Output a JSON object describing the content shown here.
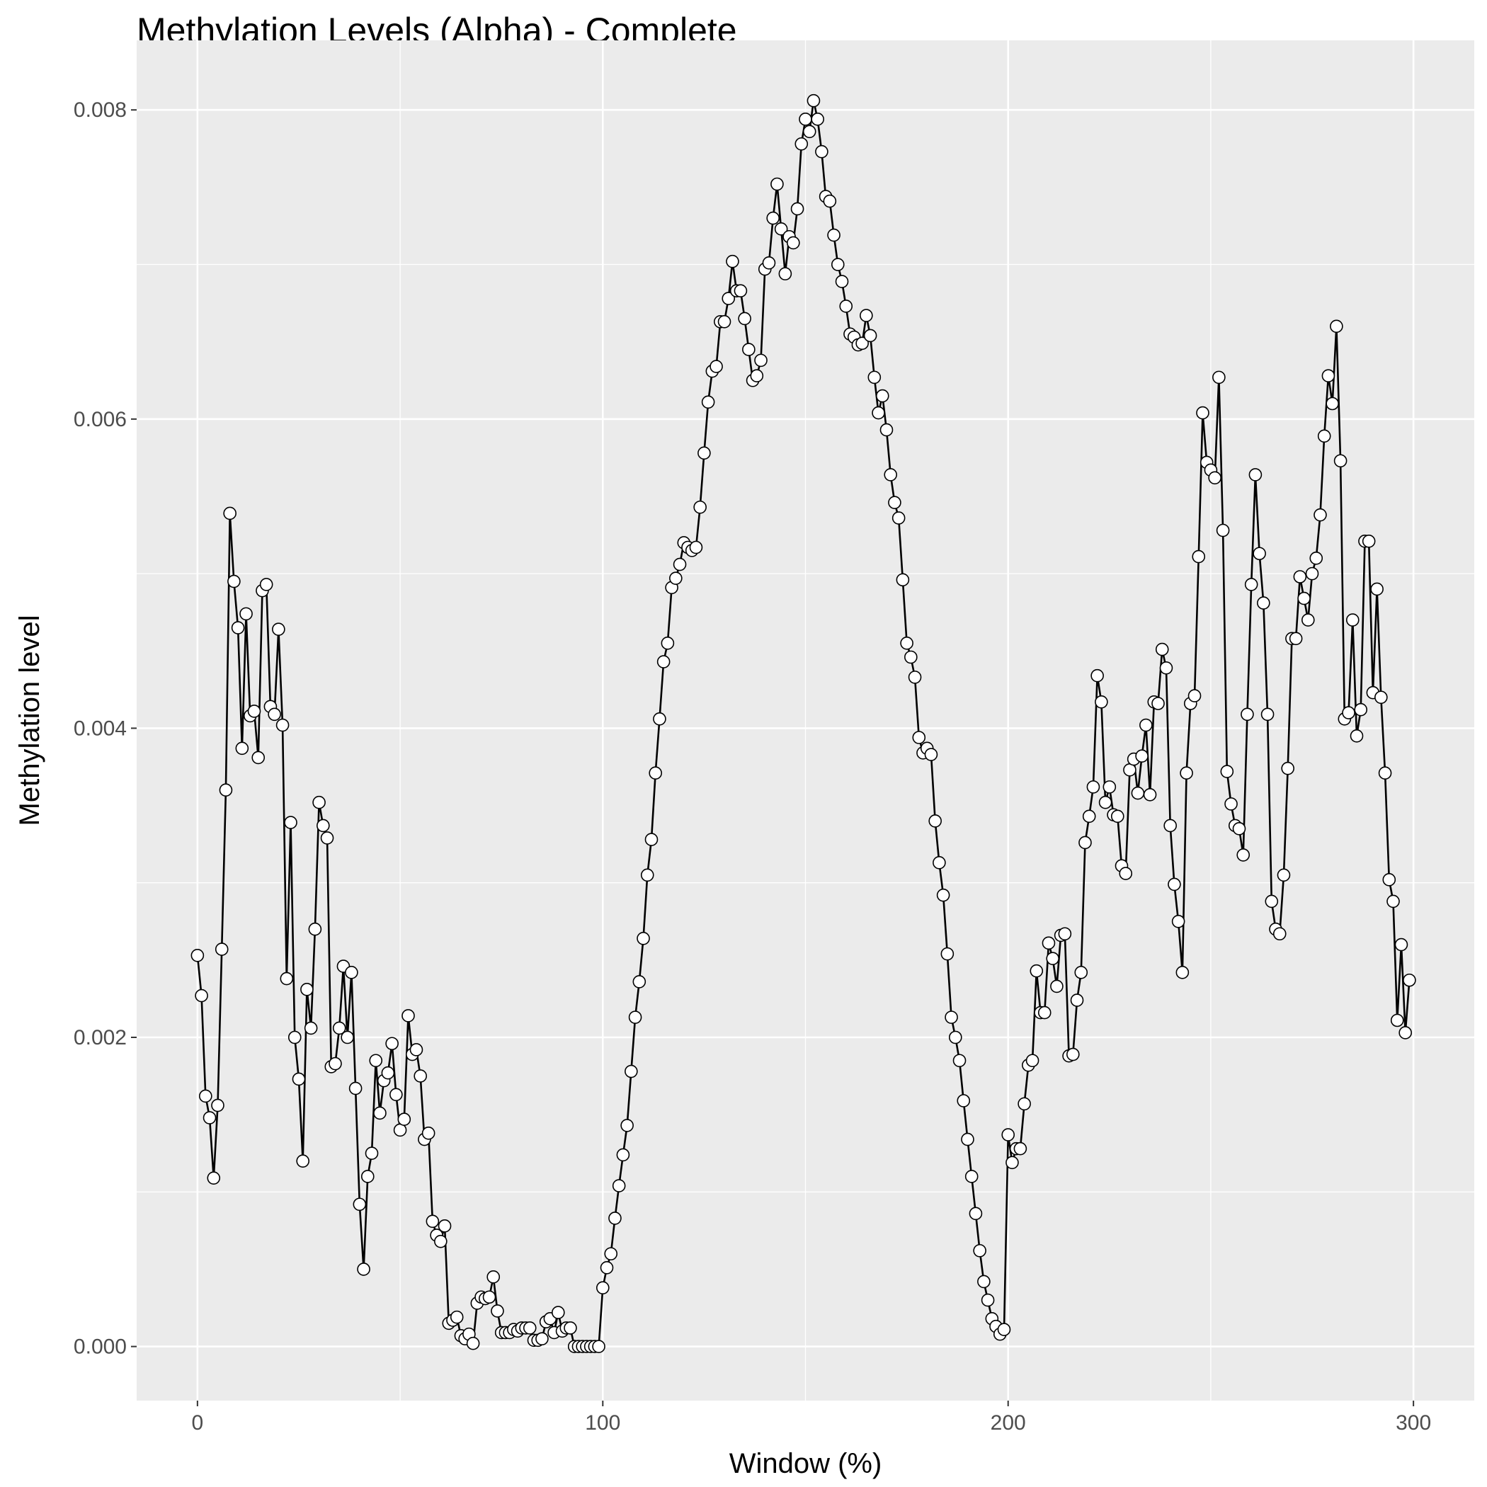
{
  "chart_data": {
    "type": "line",
    "title": "Methylation Levels (Alpha) - Complete",
    "xlabel": "Window (%)",
    "ylabel": "Methylation level",
    "xlim": [
      -15,
      315
    ],
    "ylim": [
      -0.00035,
      0.00845
    ],
    "x_ticks": [
      0,
      100,
      200,
      300
    ],
    "y_ticks": [
      0.0,
      0.002,
      0.004,
      0.006,
      0.008
    ],
    "x_tick_labels": [
      "0",
      "100",
      "200",
      "300"
    ],
    "y_tick_labels": [
      "0.000",
      "0.002",
      "0.004",
      "0.006",
      "0.008"
    ],
    "grid": true,
    "colors": {
      "panel": "#ebebeb",
      "grid": "#ffffff",
      "line": "#000000",
      "point_fill": "#ffffff",
      "point_stroke": "#000000"
    },
    "series": [
      {
        "x_start": 0,
        "x_step": 1,
        "values": [
          0.00253,
          0.00227,
          0.00162,
          0.00148,
          0.00109,
          0.00156,
          0.00257,
          0.0036,
          0.00539,
          0.00495,
          0.00465,
          0.00387,
          0.00474,
          0.00408,
          0.00411,
          0.00381,
          0.00489,
          0.00493,
          0.00414,
          0.00409,
          0.00464,
          0.00402,
          0.00238,
          0.00339,
          0.002,
          0.00173,
          0.0012,
          0.00231,
          0.00206,
          0.0027,
          0.00352,
          0.00337,
          0.00329,
          0.00181,
          0.00183,
          0.00206,
          0.00246,
          0.002,
          0.00242,
          0.00167,
          0.00092,
          0.0005,
          0.0011,
          0.00125,
          0.00185,
          0.00151,
          0.00172,
          0.00177,
          0.00196,
          0.00163,
          0.0014,
          0.00147,
          0.00214,
          0.00189,
          0.00192,
          0.00175,
          0.00134,
          0.00138,
          0.00081,
          0.00072,
          0.00068,
          0.00078,
          0.00015,
          0.00017,
          0.00019,
          7e-05,
          5e-05,
          8e-05,
          2e-05,
          0.00028,
          0.00032,
          0.00031,
          0.00032,
          0.00045,
          0.00023,
          9e-05,
          9e-05,
          9e-05,
          0.00011,
          0.0001,
          0.00012,
          0.00012,
          0.00012,
          4e-05,
          4e-05,
          5e-05,
          0.00016,
          0.00018,
          9e-05,
          0.00022,
          0.0001,
          0.00012,
          0.00012,
          0.0,
          0.0,
          0.0,
          0.0,
          0.0,
          0.0,
          0.0,
          0.00038,
          0.00051,
          0.0006,
          0.00083,
          0.00104,
          0.00124,
          0.00143,
          0.00178,
          0.00213,
          0.00236,
          0.00264,
          0.00305,
          0.00328,
          0.00371,
          0.00406,
          0.00443,
          0.00455,
          0.00491,
          0.00497,
          0.00506,
          0.0052,
          0.00517,
          0.00515,
          0.00517,
          0.00543,
          0.00578,
          0.00611,
          0.00631,
          0.00634,
          0.00663,
          0.00663,
          0.00678,
          0.00702,
          0.00683,
          0.00683,
          0.00665,
          0.00645,
          0.00625,
          0.00628,
          0.00638,
          0.00697,
          0.00701,
          0.0073,
          0.00752,
          0.00723,
          0.00694,
          0.00718,
          0.00714,
          0.00736,
          0.00778,
          0.00794,
          0.00786,
          0.00806,
          0.00794,
          0.00773,
          0.00744,
          0.00741,
          0.00719,
          0.007,
          0.00689,
          0.00673,
          0.00655,
          0.00653,
          0.00648,
          0.00649,
          0.00667,
          0.00654,
          0.00627,
          0.00604,
          0.00615,
          0.00593,
          0.00564,
          0.00546,
          0.00536,
          0.00496,
          0.00455,
          0.00446,
          0.00433,
          0.00394,
          0.00384,
          0.00387,
          0.00383,
          0.0034,
          0.00313,
          0.00292,
          0.00254,
          0.00213,
          0.002,
          0.00185,
          0.00159,
          0.00134,
          0.0011,
          0.00086,
          0.00062,
          0.00042,
          0.0003,
          0.00018,
          0.00013,
          8e-05,
          0.00011,
          0.00137,
          0.00119,
          0.00128,
          0.00128,
          0.00157,
          0.00182,
          0.00185,
          0.00243,
          0.00216,
          0.00216,
          0.00261,
          0.00251,
          0.00233,
          0.00266,
          0.00267,
          0.00188,
          0.00189,
          0.00224,
          0.00242,
          0.00326,
          0.00343,
          0.00362,
          0.00434,
          0.00417,
          0.00352,
          0.00362,
          0.00344,
          0.00343,
          0.00311,
          0.00306,
          0.00373,
          0.0038,
          0.00358,
          0.00382,
          0.00402,
          0.00357,
          0.00417,
          0.00416,
          0.00451,
          0.00439,
          0.00337,
          0.00299,
          0.00275,
          0.00242,
          0.00371,
          0.00416,
          0.00421,
          0.00511,
          0.00604,
          0.00572,
          0.00567,
          0.00562,
          0.00627,
          0.00528,
          0.00372,
          0.00351,
          0.00337,
          0.00335,
          0.00318,
          0.00409,
          0.00493,
          0.00564,
          0.00513,
          0.00481,
          0.00409,
          0.00288,
          0.0027,
          0.00267,
          0.00305,
          0.00374,
          0.00458,
          0.00458,
          0.00498,
          0.00484,
          0.0047,
          0.005,
          0.0051,
          0.00538,
          0.00589,
          0.00628,
          0.0061,
          0.0066,
          0.00573,
          0.00406,
          0.0041,
          0.0047,
          0.00395,
          0.00412,
          0.00521,
          0.00521,
          0.00423,
          0.0049,
          0.0042,
          0.00371,
          0.00302,
          0.00288,
          0.00211,
          0.0026,
          0.00203,
          0.00237
        ]
      }
    ]
  }
}
